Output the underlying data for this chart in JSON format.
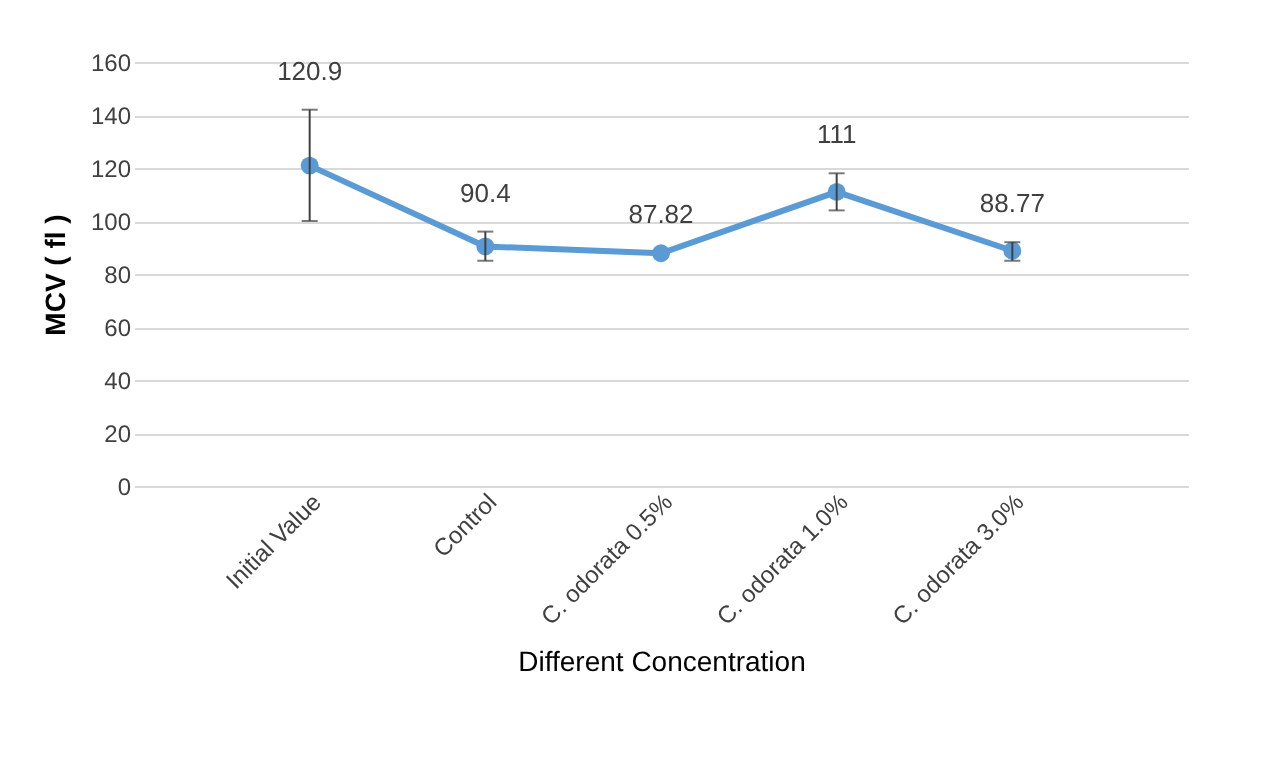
{
  "chart_data": {
    "type": "line",
    "xlabel": "Different Concentration",
    "ylabel": "MCV ( fl )",
    "categories": [
      "Initial Value",
      "Control",
      "C. odorata 0.5%",
      "C. odorata 1.0%",
      "C. odorata 3.0%"
    ],
    "series": [
      {
        "color": "#5b9bd5",
        "values": [
          120.9,
          90.4,
          87.82,
          111,
          88.77
        ],
        "errors": [
          [
            100,
            142
          ],
          [
            85,
            96
          ],
          null,
          [
            104,
            118
          ],
          [
            85,
            92
          ]
        ]
      }
    ],
    "ylim": [
      0,
      160
    ],
    "yticks": [
      0,
      20,
      40,
      60,
      80,
      100,
      120,
      140,
      160
    ],
    "grid": "y",
    "marker": "circle",
    "line_style": "solid",
    "data_labels": true
  }
}
